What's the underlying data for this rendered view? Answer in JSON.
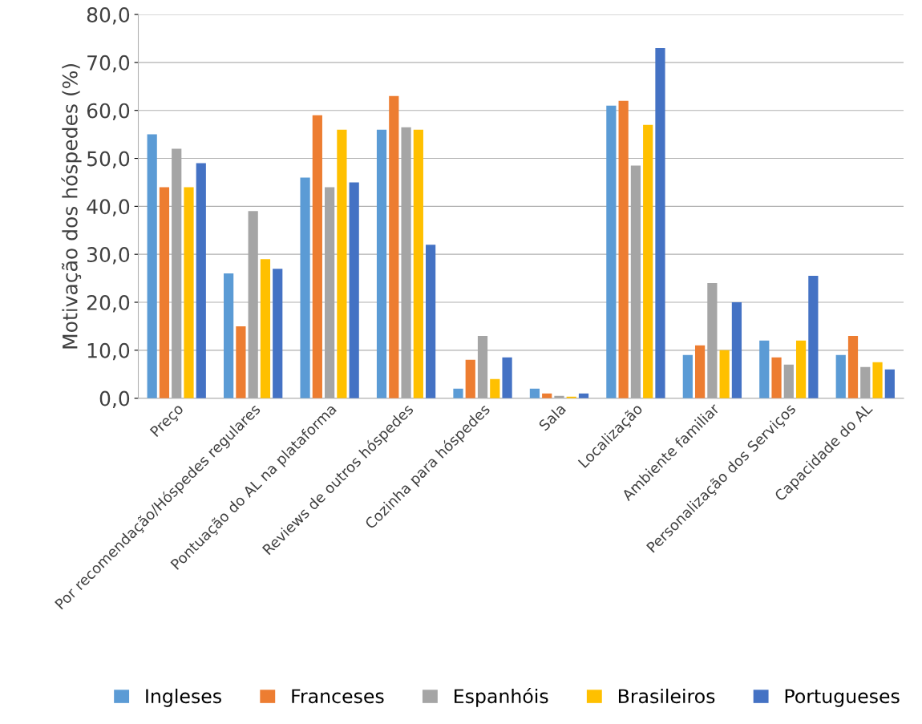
{
  "chart_data": {
    "type": "bar",
    "ylabel": "Motivação dos hóspedes (%)",
    "categories": [
      "Preço",
      "Por recomendação/Hóspedes regulares",
      "Pontuação do AL na plataforma",
      "Reviews de outros hóspedes",
      "Cozinha para hóspedes",
      "Sala",
      "Localização",
      "Ambiente familiar",
      "Personalização dos Serviços",
      "Capacidade do AL"
    ],
    "series": [
      {
        "name": "Ingleses",
        "color": "#5b9bd5",
        "values": [
          55,
          26,
          46,
          56,
          2,
          2,
          61,
          9,
          12,
          9
        ]
      },
      {
        "name": "Franceses",
        "color": "#ed7d31",
        "values": [
          44,
          15,
          59,
          63,
          8,
          1,
          62,
          11,
          8.5,
          13
        ]
      },
      {
        "name": "Espanhóis",
        "color": "#a5a5a5",
        "values": [
          52,
          39,
          44,
          56.5,
          13,
          0.5,
          48.5,
          24,
          7,
          6.5
        ]
      },
      {
        "name": "Brasileiros",
        "color": "#ffc000",
        "values": [
          44,
          29,
          56,
          56,
          4,
          0.3,
          57,
          10,
          12,
          7.5
        ]
      },
      {
        "name": "Portugueses",
        "color": "#4472c4",
        "values": [
          49,
          27,
          45,
          32,
          8.5,
          1,
          73,
          20,
          25.5,
          6
        ]
      }
    ],
    "ylim": [
      0,
      80
    ],
    "yticks": [
      {
        "value": 0,
        "label": "0,0"
      },
      {
        "value": 10,
        "label": "10,0"
      },
      {
        "value": 20,
        "label": "20,0"
      },
      {
        "value": 30,
        "label": "30,0"
      },
      {
        "value": 40,
        "label": "40,0"
      },
      {
        "value": 50,
        "label": "50,0"
      },
      {
        "value": 60,
        "label": "60,0"
      },
      {
        "value": 70,
        "label": "70,0"
      },
      {
        "value": 80,
        "label": "80,0"
      }
    ],
    "grid": "y",
    "legend": "bottom"
  }
}
